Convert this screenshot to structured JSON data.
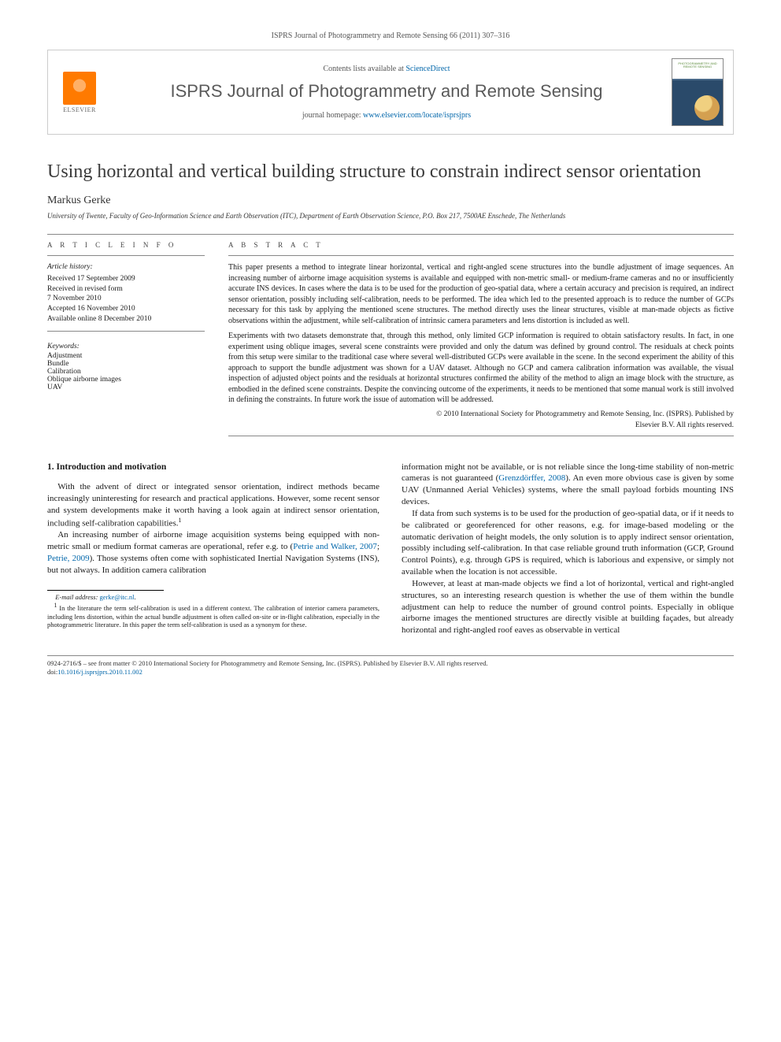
{
  "citation_header": "ISPRS Journal of Photogrammetry and Remote Sensing 66 (2011) 307–316",
  "header": {
    "contents_prefix": "Contents lists available at ",
    "contents_link": "ScienceDirect",
    "journal_name": "ISPRS Journal of Photogrammetry and Remote Sensing",
    "homepage_prefix": "journal homepage: ",
    "homepage_link": "www.elsevier.com/locate/isprsjprs",
    "publisher_label": "ELSEVIER",
    "cover_title": "PHOTOGRAMMETRY AND REMOTE SENSING"
  },
  "title": "Using horizontal and vertical building structure to constrain indirect sensor orientation",
  "author": "Markus Gerke",
  "affiliation": "University of Twente, Faculty of Geo-Information Science and Earth Observation (ITC), Department of Earth Observation Science, P.O. Box 217, 7500AE Enschede, The Netherlands",
  "article_info": {
    "heading": "A R T I C L E   I N F O",
    "history_label": "Article history:",
    "history": [
      "Received 17 September 2009",
      "Received in revised form",
      "7 November 2010",
      "Accepted 16 November 2010",
      "Available online 8 December 2010"
    ],
    "keywords_label": "Keywords:",
    "keywords": [
      "Adjustment",
      "Bundle",
      "Calibration",
      "Oblique airborne images",
      "UAV"
    ]
  },
  "abstract": {
    "heading": "A B S T R A C T",
    "p1": "This paper presents a method to integrate linear horizontal, vertical and right-angled scene structures into the bundle adjustment of image sequences. An increasing number of airborne image acquisition systems is available and equipped with non-metric small- or medium-frame cameras and no or insufficiently accurate INS devices. In cases where the data is to be used for the production of geo-spatial data, where a certain accuracy and precision is required, an indirect sensor orientation, possibly including self-calibration, needs to be performed. The idea which led to the presented approach is to reduce the number of GCPs necessary for this task by applying the mentioned scene structures. The method directly uses the linear structures, visible at man-made objects as fictive observations within the adjustment, while self-calibration of intrinsic camera parameters and lens distortion is included as well.",
    "p2": "Experiments with two datasets demonstrate that, through this method, only limited GCP information is required to obtain satisfactory results. In fact, in one experiment using oblique images, several scene constraints were provided and only the datum was defined by ground control. The residuals at check points from this setup were similar to the traditional case where several well-distributed GCPs were available in the scene. In the second experiment the ability of this approach to support the bundle adjustment was shown for a UAV dataset. Although no GCP and camera calibration information was available, the visual inspection of adjusted object points and the residuals at horizontal structures confirmed the ability of the method to align an image block with the structure, as embodied in the defined scene constraints. Despite the convincing outcome of the experiments, it needs to be mentioned that some manual work is still involved in defining the constraints. In future work the issue of automation will be addressed.",
    "copyright1": "© 2010 International Society for Photogrammetry and Remote Sensing, Inc. (ISPRS). Published by",
    "copyright2": "Elsevier B.V. All rights reserved."
  },
  "body": {
    "section_heading": "1. Introduction and motivation",
    "p1a": "With the advent of direct or integrated sensor orientation, indirect methods became increasingly uninteresting for research and practical applications. However, some recent sensor and system developments make it worth having a look again at indirect sensor orientation, including self-calibration capabilities.",
    "p2a": "An increasing number of airborne image acquisition systems being equipped with non-metric small or medium format cameras are operational, refer e.g. to (",
    "p2_ref1": "Petrie and Walker, 2007",
    "p2b": "; ",
    "p2_ref2": "Petrie, 2009",
    "p2c": "). Those systems often come with sophisticated Inertial Navigation Systems (INS), but not always. In addition camera calibration",
    "p3a": "information might not be available, or is not reliable since the long-time stability of non-metric cameras is not guaranteed (",
    "p3_ref1": "Grenzdörffer, 2008",
    "p3b": "). An even more obvious case is given by some UAV (Unmanned Aerial Vehicles) systems, where the small payload forbids mounting INS devices.",
    "p4": "If data from such systems is to be used for the production of geo-spatial data, or if it needs to be calibrated or georeferenced for other reasons, e.g. for image-based modeling or the automatic derivation of height models, the only solution is to apply indirect sensor orientation, possibly including self-calibration. In that case reliable ground truth information (GCP, Ground Control Points), e.g. through GPS is required, which is laborious and expensive, or simply not available when the location is not accessible.",
    "p5": "However, at least at man-made objects we find a lot of horizontal, vertical and right-angled structures, so an interesting research question is whether the use of them within the bundle adjustment can help to reduce the number of ground control points. Especially in oblique airborne images the mentioned structures are directly visible at building façades, but already horizontal and right-angled roof eaves as observable in vertical"
  },
  "footnotes": {
    "email_label": "E-mail address: ",
    "email": "gerke@itc.nl",
    "note1_marker": "1",
    "note1": " In the literature the term self-calibration is used in a different context. The calibration of interior camera parameters, including lens distortion, within the actual bundle adjustment is often called on-site or in-flight calibration, especially in the photogrammetric literature. In this paper the term self-calibration is used as a synonym for these."
  },
  "footer": {
    "line1": "0924-2716/$ – see front matter © 2010 International Society for Photogrammetry and Remote Sensing, Inc. (ISPRS). Published by Elsevier B.V. All rights reserved.",
    "doi_label": "doi:",
    "doi": "10.1016/j.isprsjprs.2010.11.002"
  },
  "colors": {
    "link": "#0066aa",
    "elsevier_orange": "#ff7a00",
    "text": "#1a1a1a",
    "rule": "#888888"
  }
}
